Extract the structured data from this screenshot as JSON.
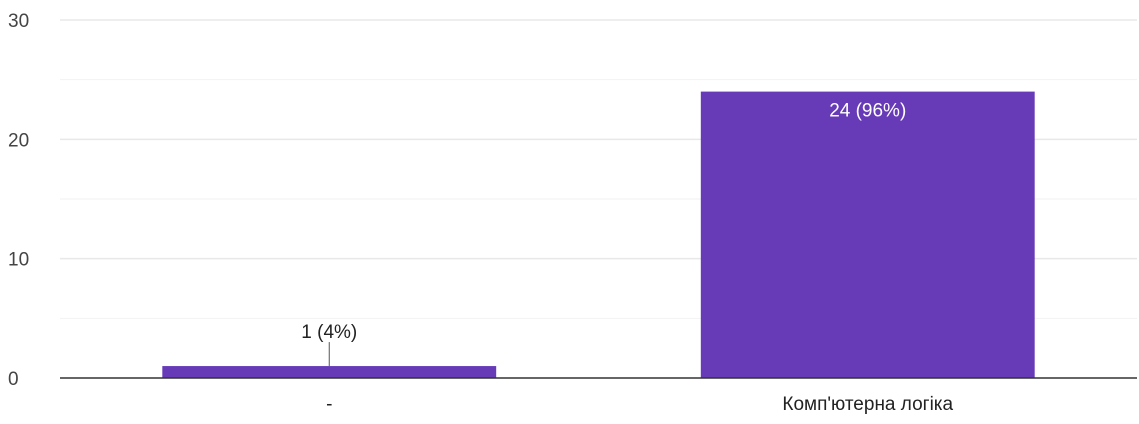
{
  "chart_data": {
    "type": "bar",
    "categories": [
      "-",
      "Комп'ютерна логіка"
    ],
    "values": [
      1,
      24
    ],
    "data_labels": [
      "1 (4%)",
      "24 (96%)"
    ],
    "ylim": [
      0,
      30
    ],
    "yticks": [
      0,
      10,
      20,
      30
    ],
    "yticks_labels": [
      "0",
      "10",
      "20",
      "30"
    ],
    "grid": true,
    "minor_grid": true,
    "legend": "none",
    "colors": {
      "bar": "#673ab7",
      "grid": "#e8e8e8",
      "axis": "#333333"
    }
  }
}
